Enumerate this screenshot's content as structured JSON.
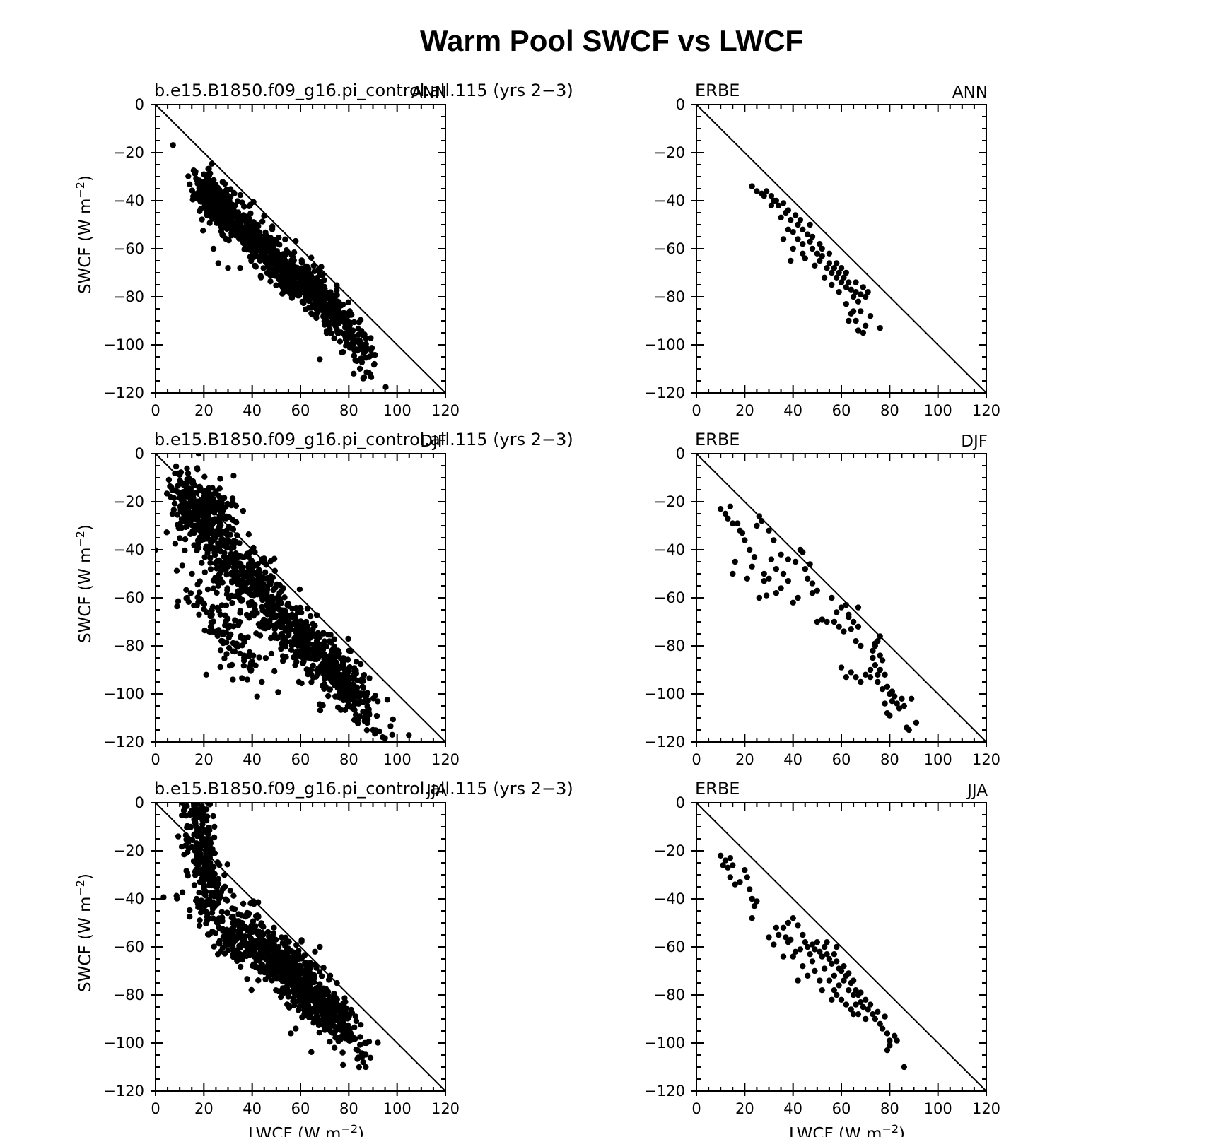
{
  "figure": {
    "title": "Warm Pool SWCF vs LWCF",
    "xlabel_text": "LWCF (W m",
    "ylabel_text": "SWCF (W m",
    "unit_exponent": "−2",
    "x_ticks": [
      "0",
      "20",
      "40",
      "60",
      "80",
      "100",
      "120"
    ],
    "y_ticks": [
      "0",
      "−20",
      "−40",
      "−60",
      "−80",
      "−100",
      "−120"
    ]
  },
  "chart_data": [
    {
      "type": "scatter",
      "left_label": "b.e15.B1850.f09_g16.pi_control.all.115 (yrs 2−3)",
      "right_label": "ANN",
      "xlim": [
        0,
        120
      ],
      "ylim": [
        -120,
        0
      ],
      "reference_line": {
        "from": [
          0,
          0
        ],
        "to": [
          120,
          -120
        ]
      },
      "clusters": [
        [
          20,
          -36,
          30,
          -45,
          6,
          5,
          320
        ],
        [
          42,
          -58,
          12,
          6,
          320
        ],
        [
          58,
          -72,
          11,
          6,
          320
        ],
        [
          72,
          -82,
          7,
          7,
          140
        ],
        [
          84,
          -102,
          4,
          5,
          60
        ]
      ],
      "outliers": [
        [
          24,
          -60
        ],
        [
          26,
          -66
        ],
        [
          30,
          -68
        ],
        [
          35,
          -68
        ],
        [
          20,
          -35
        ],
        [
          86,
          -114
        ],
        [
          82,
          -112
        ],
        [
          68,
          -106
        ]
      ]
    },
    {
      "type": "scatter",
      "left_label": "ERBE",
      "right_label": "ANN",
      "xlim": [
        0,
        120
      ],
      "ylim": [
        -120,
        0
      ],
      "reference_line": {
        "from": [
          0,
          0
        ],
        "to": [
          120,
          -120
        ]
      },
      "points": [
        [
          23,
          -34
        ],
        [
          25,
          -36
        ],
        [
          27,
          -37
        ],
        [
          29,
          -36
        ],
        [
          31,
          -38
        ],
        [
          33,
          -40
        ],
        [
          34,
          -42
        ],
        [
          36,
          -41
        ],
        [
          38,
          -44
        ],
        [
          39,
          -48
        ],
        [
          41,
          -46
        ],
        [
          42,
          -50
        ],
        [
          44,
          -52
        ],
        [
          46,
          -54
        ],
        [
          36,
          -56
        ],
        [
          38,
          -52
        ],
        [
          40,
          -60
        ],
        [
          42,
          -56
        ],
        [
          44,
          -58
        ],
        [
          47,
          -57
        ],
        [
          48,
          -60
        ],
        [
          50,
          -62
        ],
        [
          51,
          -65
        ],
        [
          52,
          -63
        ],
        [
          54,
          -68
        ],
        [
          55,
          -66
        ],
        [
          56,
          -70
        ],
        [
          57,
          -68
        ],
        [
          58,
          -72
        ],
        [
          59,
          -70
        ],
        [
          60,
          -74
        ],
        [
          61,
          -72
        ],
        [
          62,
          -76
        ],
        [
          63,
          -74
        ],
        [
          64,
          -77
        ],
        [
          65,
          -80
        ],
        [
          66,
          -78
        ],
        [
          67,
          -82
        ],
        [
          68,
          -79
        ],
        [
          70,
          -80
        ],
        [
          31,
          -42
        ],
        [
          35,
          -47
        ],
        [
          40,
          -53
        ],
        [
          45,
          -64
        ],
        [
          49,
          -67
        ],
        [
          53,
          -72
        ],
        [
          56,
          -75
        ],
        [
          59,
          -78
        ],
        [
          62,
          -83
        ],
        [
          64,
          -87
        ],
        [
          66,
          -90
        ],
        [
          68,
          -86
        ],
        [
          70,
          -92
        ],
        [
          72,
          -88
        ],
        [
          76,
          -93
        ],
        [
          67,
          -94
        ],
        [
          69,
          -95
        ],
        [
          63,
          -90
        ],
        [
          65,
          -86
        ],
        [
          58,
          -66
        ],
        [
          55,
          -62
        ],
        [
          52,
          -60
        ],
        [
          48,
          -55
        ],
        [
          60,
          -68
        ],
        [
          62,
          -70
        ],
        [
          66,
          -74
        ],
        [
          69,
          -76
        ],
        [
          71,
          -78
        ],
        [
          28,
          -38
        ],
        [
          32,
          -40
        ],
        [
          37,
          -45
        ],
        [
          43,
          -48
        ],
        [
          47,
          -50
        ],
        [
          51,
          -58
        ],
        [
          39,
          -65
        ],
        [
          44,
          -62
        ]
      ]
    },
    {
      "type": "scatter",
      "left_label": "b.e15.B1850.f09_g16.pi_control.all.115 (yrs 2−3)",
      "right_label": "DJF",
      "xlim": [
        0,
        120
      ],
      "ylim": [
        -120,
        0
      ],
      "reference_line": {
        "from": [
          0,
          0
        ],
        "to": [
          120,
          -120
        ]
      },
      "clusters": [
        [
          9,
          -19,
          28,
          -27,
          7,
          8,
          300
        ],
        [
          34,
          -47,
          10,
          10,
          260
        ],
        [
          53,
          -70,
          12,
          9,
          300
        ],
        [
          75,
          -92,
          9,
          8,
          320
        ],
        [
          28,
          -72,
          9,
          9,
          120
        ]
      ],
      "outliers": [
        [
          18,
          -67
        ],
        [
          21,
          -92
        ],
        [
          32,
          -94
        ],
        [
          38,
          -94
        ],
        [
          44,
          -95
        ],
        [
          98,
          -117
        ],
        [
          94,
          -118
        ],
        [
          90,
          -115
        ]
      ]
    },
    {
      "type": "scatter",
      "left_label": "ERBE",
      "right_label": "DJF",
      "xlim": [
        0,
        120
      ],
      "ylim": [
        -120,
        0
      ],
      "reference_line": {
        "from": [
          0,
          0
        ],
        "to": [
          120,
          -120
        ]
      },
      "points": [
        [
          10,
          -23
        ],
        [
          12,
          -25
        ],
        [
          14,
          -22
        ],
        [
          15,
          -29
        ],
        [
          16,
          -45
        ],
        [
          15,
          -50
        ],
        [
          18,
          -32
        ],
        [
          20,
          -36
        ],
        [
          21,
          -52
        ],
        [
          22,
          -40
        ],
        [
          24,
          -43
        ],
        [
          25,
          -30
        ],
        [
          26,
          -26
        ],
        [
          27,
          -28
        ],
        [
          26,
          -60
        ],
        [
          28,
          -50
        ],
        [
          29,
          -59
        ],
        [
          30,
          -32
        ],
        [
          31,
          -44
        ],
        [
          32,
          -36
        ],
        [
          33,
          -48
        ],
        [
          35,
          -42
        ],
        [
          36,
          -50
        ],
        [
          38,
          -44
        ],
        [
          40,
          -62
        ],
        [
          41,
          -45
        ],
        [
          42,
          -60
        ],
        [
          43,
          -40
        ],
        [
          44,
          -41
        ],
        [
          45,
          -48
        ],
        [
          46,
          -52
        ],
        [
          47,
          -46
        ],
        [
          48,
          -54
        ],
        [
          50,
          -70
        ],
        [
          52,
          -69
        ],
        [
          56,
          -60
        ],
        [
          58,
          -66
        ],
        [
          59,
          -72
        ],
        [
          60,
          -64
        ],
        [
          61,
          -74
        ],
        [
          62,
          -63
        ],
        [
          63,
          -68
        ],
        [
          64,
          -73
        ],
        [
          65,
          -70
        ],
        [
          66,
          -78
        ],
        [
          67,
          -72
        ],
        [
          68,
          -80
        ],
        [
          60,
          -89
        ],
        [
          62,
          -93
        ],
        [
          64,
          -91
        ],
        [
          66,
          -93
        ],
        [
          68,
          -95
        ],
        [
          70,
          -92
        ],
        [
          72,
          -90
        ],
        [
          73,
          -85
        ],
        [
          74,
          -80
        ],
        [
          75,
          -78
        ],
        [
          76,
          -76
        ],
        [
          74,
          -88
        ],
        [
          76,
          -90
        ],
        [
          75,
          -95
        ],
        [
          77,
          -98
        ],
        [
          78,
          -92
        ],
        [
          79,
          -97
        ],
        [
          80,
          -100
        ],
        [
          81,
          -103
        ],
        [
          82,
          -101
        ],
        [
          83,
          -104
        ],
        [
          84,
          -106
        ],
        [
          85,
          -102
        ],
        [
          79,
          -108
        ],
        [
          80,
          -109
        ],
        [
          87,
          -114
        ],
        [
          88,
          -115
        ],
        [
          91,
          -112
        ],
        [
          77,
          -86
        ],
        [
          73,
          -82
        ],
        [
          76,
          -84
        ],
        [
          74,
          -79
        ],
        [
          75,
          -92
        ],
        [
          72,
          -93
        ],
        [
          78,
          -104
        ],
        [
          81,
          -99
        ],
        [
          86,
          -105
        ],
        [
          89,
          -102
        ],
        [
          67,
          -64
        ],
        [
          63,
          -67
        ],
        [
          57,
          -70
        ],
        [
          54,
          -70
        ],
        [
          30,
          -52
        ],
        [
          23,
          -47
        ],
        [
          19,
          -33
        ],
        [
          17,
          -29
        ],
        [
          13,
          -27
        ],
        [
          38,
          -53
        ],
        [
          35,
          -56
        ],
        [
          33,
          -58
        ],
        [
          28,
          -53
        ],
        [
          50,
          -57
        ],
        [
          48,
          -58
        ]
      ]
    },
    {
      "type": "scatter",
      "left_label": "b.e15.B1850.f09_g16.pi_control.all.115 (yrs 2−3)",
      "right_label": "JJA",
      "xlim": [
        0,
        120
      ],
      "ylim": [
        -120,
        0
      ],
      "reference_line": {
        "from": [
          0,
          0
        ],
        "to": [
          120,
          -120
        ]
      },
      "clusters": [
        [
          24,
          -42,
          14,
          9,
          7,
          7,
          300
        ],
        [
          46,
          -62,
          10,
          7,
          300
        ],
        [
          62,
          -76,
          10,
          8,
          340
        ],
        [
          74,
          -88,
          6,
          6,
          140
        ],
        [
          30,
          -58,
          8,
          6,
          90
        ]
      ],
      "outliers": [
        [
          17,
          -40
        ],
        [
          20,
          -34
        ],
        [
          86,
          -108
        ],
        [
          84,
          -106
        ],
        [
          87,
          -110
        ],
        [
          56,
          -96
        ],
        [
          58,
          -94
        ],
        [
          66,
          -62
        ],
        [
          68,
          -60
        ]
      ]
    },
    {
      "type": "scatter",
      "left_label": "ERBE",
      "right_label": "JJA",
      "xlim": [
        0,
        120
      ],
      "ylim": [
        -120,
        0
      ],
      "reference_line": {
        "from": [
          0,
          0
        ],
        "to": [
          120,
          -120
        ]
      },
      "points": [
        [
          10,
          -22
        ],
        [
          11,
          -26
        ],
        [
          12,
          -24
        ],
        [
          13,
          -27
        ],
        [
          14,
          -23
        ],
        [
          14,
          -31
        ],
        [
          15,
          -26
        ],
        [
          16,
          -34
        ],
        [
          18,
          -33
        ],
        [
          20,
          -28
        ],
        [
          21,
          -31
        ],
        [
          22,
          -36
        ],
        [
          23,
          -40
        ],
        [
          24,
          -43
        ],
        [
          25,
          -41
        ],
        [
          23,
          -48
        ],
        [
          30,
          -56
        ],
        [
          33,
          -52
        ],
        [
          34,
          -55
        ],
        [
          36,
          -52
        ],
        [
          37,
          -56
        ],
        [
          38,
          -58
        ],
        [
          38,
          -50
        ],
        [
          39,
          -57
        ],
        [
          40,
          -48
        ],
        [
          41,
          -62
        ],
        [
          42,
          -51
        ],
        [
          42,
          -74
        ],
        [
          43,
          -61
        ],
        [
          44,
          -55
        ],
        [
          45,
          -58
        ],
        [
          46,
          -60
        ],
        [
          46,
          -72
        ],
        [
          47,
          -63
        ],
        [
          48,
          -59
        ],
        [
          49,
          -61
        ],
        [
          49,
          -70
        ],
        [
          50,
          -58
        ],
        [
          51,
          -62
        ],
        [
          51,
          -74
        ],
        [
          52,
          -64
        ],
        [
          52,
          -78
        ],
        [
          53,
          -60
        ],
        [
          53,
          -69
        ],
        [
          54,
          -63
        ],
        [
          55,
          -65
        ],
        [
          55,
          -74
        ],
        [
          56,
          -67
        ],
        [
          56,
          -82
        ],
        [
          57,
          -63
        ],
        [
          57,
          -72
        ],
        [
          58,
          -66
        ],
        [
          58,
          -80
        ],
        [
          59,
          -69
        ],
        [
          59,
          -76
        ],
        [
          60,
          -70
        ],
        [
          60,
          -82
        ],
        [
          61,
          -68
        ],
        [
          61,
          -74
        ],
        [
          62,
          -72
        ],
        [
          62,
          -84
        ],
        [
          63,
          -71
        ],
        [
          63,
          -78
        ],
        [
          64,
          -75
        ],
        [
          64,
          -86
        ],
        [
          65,
          -74
        ],
        [
          65,
          -80
        ],
        [
          66,
          -78
        ],
        [
          66,
          -84
        ],
        [
          67,
          -80
        ],
        [
          67,
          -88
        ],
        [
          68,
          -79
        ],
        [
          68,
          -83
        ],
        [
          69,
          -85
        ],
        [
          70,
          -82
        ],
        [
          70,
          -90
        ],
        [
          71,
          -86
        ],
        [
          72,
          -84
        ],
        [
          73,
          -88
        ],
        [
          74,
          -90
        ],
        [
          75,
          -87
        ],
        [
          76,
          -92
        ],
        [
          77,
          -94
        ],
        [
          78,
          -89
        ],
        [
          79,
          -96
        ],
        [
          80,
          -99
        ],
        [
          80,
          -101
        ],
        [
          82,
          -97
        ],
        [
          83,
          -99
        ],
        [
          86,
          -110
        ],
        [
          79,
          -103
        ],
        [
          58,
          -60
        ],
        [
          54,
          -58
        ],
        [
          48,
          -66
        ],
        [
          44,
          -68
        ],
        [
          40,
          -64
        ],
        [
          36,
          -64
        ],
        [
          32,
          -59
        ],
        [
          57,
          -78
        ],
        [
          65,
          -88
        ]
      ]
    }
  ]
}
